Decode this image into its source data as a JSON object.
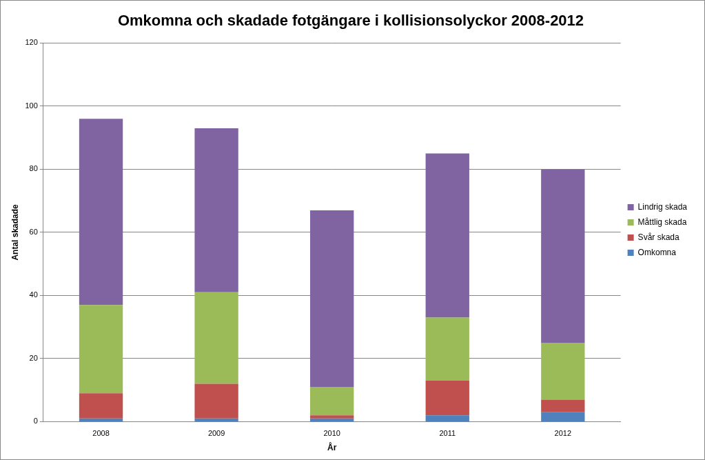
{
  "chart_data": {
    "type": "bar",
    "title": "Omkomna och skadade fotgängare i kollisionsolyckor 2008-2012",
    "x_label": "År",
    "y_label": "Antal skadade",
    "categories": [
      "2008",
      "2009",
      "2010",
      "2011",
      "2012"
    ],
    "series": [
      {
        "name": "Omkomna",
        "color": "#4f81bd",
        "values": [
          1,
          1,
          1,
          2,
          3
        ]
      },
      {
        "name": "Svår skada",
        "color": "#c0504d",
        "values": [
          8,
          11,
          1,
          11,
          4
        ]
      },
      {
        "name": "Måttlig skada",
        "color": "#9bbb59",
        "values": [
          28,
          29,
          9,
          20,
          18
        ]
      },
      {
        "name": "Lindrig skada",
        "color": "#8064a2",
        "values": [
          59,
          52,
          56,
          52,
          55
        ]
      }
    ],
    "stacked": true,
    "ylim": [
      0,
      120
    ],
    "yticks": [
      0,
      20,
      40,
      60,
      80,
      100,
      120
    ],
    "grid": true,
    "legend": "right"
  }
}
